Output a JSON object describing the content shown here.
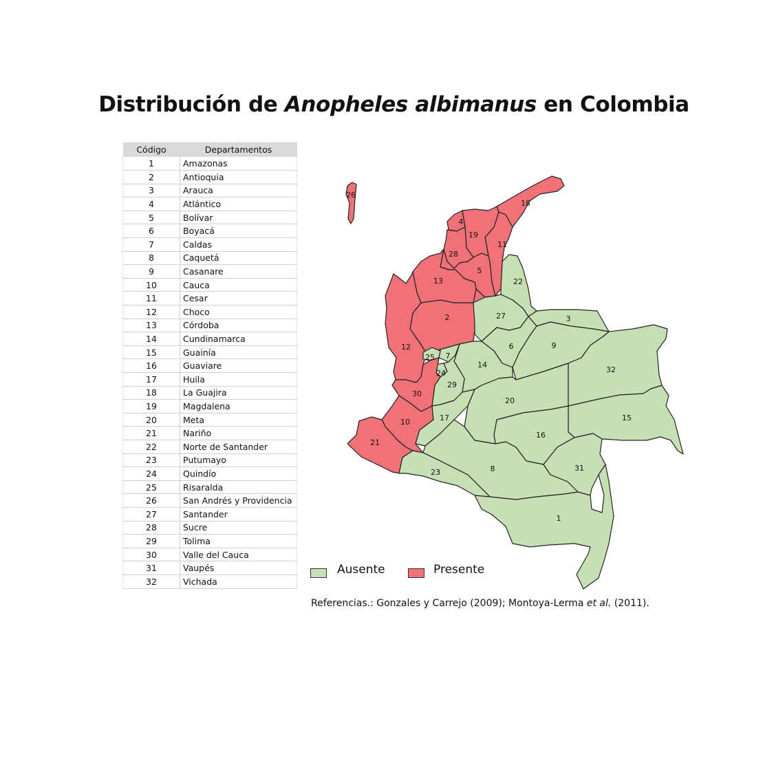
{
  "title": {
    "before": "Distribución de ",
    "species": "Anopheles albimanus",
    "after": " en Colombia"
  },
  "table": {
    "header_code": "Código",
    "header_dept": "Departamentos",
    "rows": [
      {
        "code": "1",
        "name": "Amazonas"
      },
      {
        "code": "2",
        "name": "Antioquia"
      },
      {
        "code": "3",
        "name": "Arauca"
      },
      {
        "code": "4",
        "name": "Atlántico"
      },
      {
        "code": "5",
        "name": "Bolívar"
      },
      {
        "code": "6",
        "name": "Boyacá"
      },
      {
        "code": "7",
        "name": "Caldas"
      },
      {
        "code": "8",
        "name": "Caquetá"
      },
      {
        "code": "9",
        "name": "Casanare"
      },
      {
        "code": "10",
        "name": "Cauca"
      },
      {
        "code": "11",
        "name": "Cesar"
      },
      {
        "code": "12",
        "name": "Choco"
      },
      {
        "code": "13",
        "name": "Córdoba"
      },
      {
        "code": "14",
        "name": "Cundinamarca"
      },
      {
        "code": "15",
        "name": "Guainía"
      },
      {
        "code": "16",
        "name": "Guaviare"
      },
      {
        "code": "17",
        "name": "Huila"
      },
      {
        "code": "18",
        "name": "La Guajira"
      },
      {
        "code": "19",
        "name": "Magdalena"
      },
      {
        "code": "20",
        "name": "Meta"
      },
      {
        "code": "21",
        "name": "Nariño"
      },
      {
        "code": "22",
        "name": "Norte de Santander"
      },
      {
        "code": "23",
        "name": "Putumayo"
      },
      {
        "code": "24",
        "name": "Quindío"
      },
      {
        "code": "25",
        "name": "Risaralda"
      },
      {
        "code": "26",
        "name": "San Andrés y Providencia"
      },
      {
        "code": "27",
        "name": "Santander"
      },
      {
        "code": "28",
        "name": "Sucre"
      },
      {
        "code": "29",
        "name": "Tolima"
      },
      {
        "code": "30",
        "name": "Valle del Cauca"
      },
      {
        "code": "31",
        "name": "Vaupés"
      },
      {
        "code": "32",
        "name": "Vichada"
      }
    ]
  },
  "legend": {
    "absent_label": "Ausente",
    "present_label": "Presente",
    "absent_color": "#c6dfb4",
    "present_color": "#f07178"
  },
  "references": {
    "prefix": "Referencias.: Gonzales y Carrejo (2009); Montoya-Lerma ",
    "etal": "et al.",
    "suffix": " (2011)."
  },
  "map": {
    "present_codes": [
      "2",
      "4",
      "5",
      "10",
      "11",
      "12",
      "13",
      "18",
      "19",
      "21",
      "26",
      "28",
      "30"
    ],
    "absent_codes": [
      "1",
      "3",
      "6",
      "7",
      "8",
      "9",
      "14",
      "15",
      "16",
      "17",
      "20",
      "22",
      "23",
      "24",
      "25",
      "27",
      "29",
      "31",
      "32"
    ]
  }
}
